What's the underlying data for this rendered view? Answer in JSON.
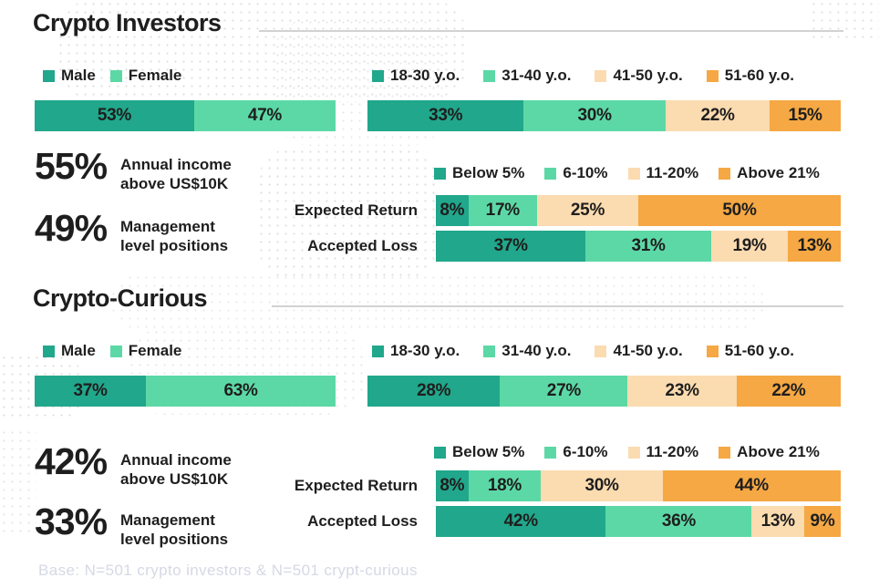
{
  "palette": {
    "teal": "#21A78B",
    "green": "#5CD8A6",
    "peach": "#FBDBB0",
    "orange": "#F5A843",
    "stat_green": "#3CCD90",
    "text": "#1e1e1e",
    "divider": "#d2d2d2",
    "footer": "#d6d8e5"
  },
  "sections": [
    {
      "title": "Crypto Investors",
      "gender": {
        "legend": [
          {
            "label": "Male",
            "color": "teal"
          },
          {
            "label": "Female",
            "color": "green"
          }
        ],
        "bar": [
          {
            "label": "53%",
            "pct": 53,
            "color": "teal"
          },
          {
            "label": "47%",
            "pct": 47,
            "color": "green"
          }
        ]
      },
      "age": {
        "legend": [
          {
            "label": "18-30 y.o.",
            "color": "teal"
          },
          {
            "label": "31-40 y.o.",
            "color": "green"
          },
          {
            "label": "41-50 y.o.",
            "color": "peach"
          },
          {
            "label": "51-60 y.o.",
            "color": "orange"
          }
        ],
        "bar": [
          {
            "label": "33%",
            "pct": 33,
            "color": "teal"
          },
          {
            "label": "30%",
            "pct": 30,
            "color": "green"
          },
          {
            "label": "22%",
            "pct": 22,
            "color": "peach"
          },
          {
            "label": "15%",
            "pct": 15,
            "color": "orange"
          }
        ]
      },
      "stats": [
        {
          "value": "55%",
          "lines": [
            "Annual income",
            "above US$10K"
          ]
        },
        {
          "value": "49%",
          "lines": [
            "Management",
            "level positions"
          ]
        }
      ],
      "risk": {
        "legend": [
          {
            "label": "Below 5%",
            "color": "teal"
          },
          {
            "label": "6-10%",
            "color": "green"
          },
          {
            "label": "11-20%",
            "color": "peach"
          },
          {
            "label": "Above 21%",
            "color": "orange"
          }
        ],
        "rows": [
          {
            "label": "Expected Return",
            "bar": [
              {
                "label": "8%",
                "pct": 8,
                "color": "teal"
              },
              {
                "label": "17%",
                "pct": 17,
                "color": "green"
              },
              {
                "label": "25%",
                "pct": 25,
                "color": "peach"
              },
              {
                "label": "50%",
                "pct": 50,
                "color": "orange"
              }
            ]
          },
          {
            "label": "Accepted Loss",
            "bar": [
              {
                "label": "37%",
                "pct": 37,
                "color": "teal"
              },
              {
                "label": "31%",
                "pct": 31,
                "color": "green"
              },
              {
                "label": "19%",
                "pct": 19,
                "color": "peach"
              },
              {
                "label": "13%",
                "pct": 13,
                "color": "orange"
              }
            ]
          }
        ]
      }
    },
    {
      "title": "Crypto-Curious",
      "gender": {
        "legend": [
          {
            "label": "Male",
            "color": "teal"
          },
          {
            "label": "Female",
            "color": "green"
          }
        ],
        "bar": [
          {
            "label": "37%",
            "pct": 37,
            "color": "teal"
          },
          {
            "label": "63%",
            "pct": 63,
            "color": "green"
          }
        ]
      },
      "age": {
        "legend": [
          {
            "label": "18-30 y.o.",
            "color": "teal"
          },
          {
            "label": "31-40 y.o.",
            "color": "green"
          },
          {
            "label": "41-50 y.o.",
            "color": "peach"
          },
          {
            "label": "51-60 y.o.",
            "color": "orange"
          }
        ],
        "bar": [
          {
            "label": "28%",
            "pct": 28,
            "color": "teal"
          },
          {
            "label": "27%",
            "pct": 27,
            "color": "green"
          },
          {
            "label": "23%",
            "pct": 23,
            "color": "peach"
          },
          {
            "label": "22%",
            "pct": 22,
            "color": "orange"
          }
        ]
      },
      "stats": [
        {
          "value": "42%",
          "lines": [
            "Annual income",
            "above US$10K"
          ]
        },
        {
          "value": "33%",
          "lines": [
            "Management",
            "level positions"
          ]
        }
      ],
      "risk": {
        "legend": [
          {
            "label": "Below 5%",
            "color": "teal"
          },
          {
            "label": "6-10%",
            "color": "green"
          },
          {
            "label": "11-20%",
            "color": "peach"
          },
          {
            "label": "Above 21%",
            "color": "orange"
          }
        ],
        "rows": [
          {
            "label": "Expected Return",
            "bar": [
              {
                "label": "8%",
                "pct": 8,
                "color": "teal"
              },
              {
                "label": "18%",
                "pct": 18,
                "color": "green"
              },
              {
                "label": "30%",
                "pct": 30,
                "color": "peach"
              },
              {
                "label": "44%",
                "pct": 44,
                "color": "orange"
              }
            ]
          },
          {
            "label": "Accepted Loss",
            "bar": [
              {
                "label": "42%",
                "pct": 42,
                "color": "teal"
              },
              {
                "label": "36%",
                "pct": 36,
                "color": "green"
              },
              {
                "label": "13%",
                "pct": 13,
                "color": "peach"
              },
              {
                "label": "9%",
                "pct": 9,
                "color": "orange"
              }
            ]
          }
        ]
      }
    }
  ],
  "footer": "Base: N=501 crypto investors & N=501 crypt-curious",
  "chart_data": [
    {
      "type": "bar",
      "stacked": true,
      "group": "Crypto Investors",
      "name": "Gender split",
      "categories": [
        "Male",
        "Female"
      ],
      "values": [
        53,
        47
      ],
      "unit": "%"
    },
    {
      "type": "bar",
      "stacked": true,
      "group": "Crypto Investors",
      "name": "Age split",
      "categories": [
        "18-30 y.o.",
        "31-40 y.o.",
        "41-50 y.o.",
        "51-60 y.o."
      ],
      "values": [
        33,
        30,
        22,
        15
      ],
      "unit": "%"
    },
    {
      "type": "bar",
      "stacked": true,
      "group": "Crypto Investors",
      "name": "Expected Return",
      "categories": [
        "Below 5%",
        "6-10%",
        "11-20%",
        "Above 21%"
      ],
      "values": [
        8,
        17,
        25,
        50
      ],
      "unit": "%"
    },
    {
      "type": "bar",
      "stacked": true,
      "group": "Crypto Investors",
      "name": "Accepted Loss",
      "categories": [
        "Below 5%",
        "6-10%",
        "11-20%",
        "Above 21%"
      ],
      "values": [
        37,
        31,
        19,
        13
      ],
      "unit": "%"
    },
    {
      "type": "bar",
      "stacked": true,
      "group": "Crypto Investors",
      "name": "Key stats",
      "categories": [
        "Annual income above US$10K",
        "Management level positions"
      ],
      "values": [
        55,
        49
      ],
      "unit": "%"
    },
    {
      "type": "bar",
      "stacked": true,
      "group": "Crypto-Curious",
      "name": "Gender split",
      "categories": [
        "Male",
        "Female"
      ],
      "values": [
        37,
        63
      ],
      "unit": "%"
    },
    {
      "type": "bar",
      "stacked": true,
      "group": "Crypto-Curious",
      "name": "Age split",
      "categories": [
        "18-30 y.o.",
        "31-40 y.o.",
        "41-50 y.o.",
        "51-60 y.o."
      ],
      "values": [
        28,
        27,
        23,
        22
      ],
      "unit": "%"
    },
    {
      "type": "bar",
      "stacked": true,
      "group": "Crypto-Curious",
      "name": "Expected Return",
      "categories": [
        "Below 5%",
        "6-10%",
        "11-20%",
        "Above 21%"
      ],
      "values": [
        8,
        18,
        30,
        44
      ],
      "unit": "%"
    },
    {
      "type": "bar",
      "stacked": true,
      "group": "Crypto-Curious",
      "name": "Accepted Loss",
      "categories": [
        "Below 5%",
        "6-10%",
        "11-20%",
        "Above 21%"
      ],
      "values": [
        42,
        36,
        13,
        9
      ],
      "unit": "%"
    },
    {
      "type": "bar",
      "stacked": true,
      "group": "Crypto-Curious",
      "name": "Key stats",
      "categories": [
        "Annual income above US$10K",
        "Management level positions"
      ],
      "values": [
        42,
        33
      ],
      "unit": "%"
    }
  ]
}
